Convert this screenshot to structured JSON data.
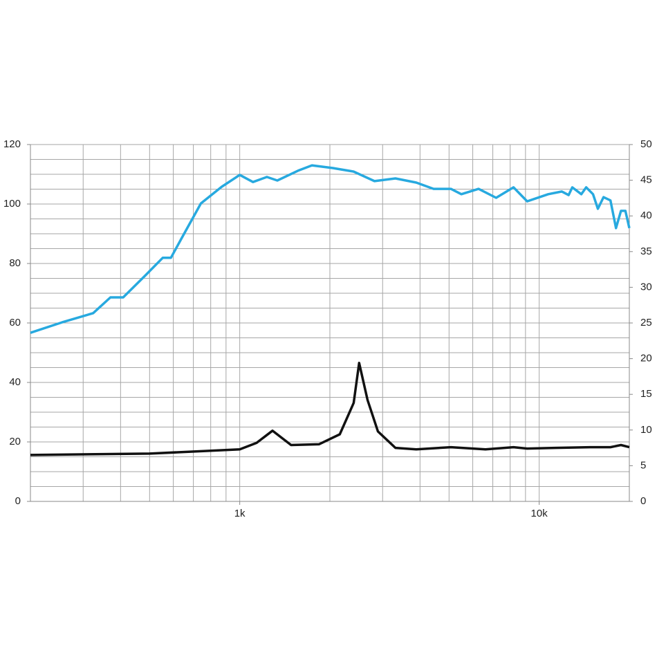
{
  "chart_data": {
    "type": "line",
    "xscale": "log",
    "xlim": [
      200,
      20000
    ],
    "xticks": [
      {
        "value": 1000,
        "label": "1k"
      },
      {
        "value": 10000,
        "label": "10k"
      }
    ],
    "xminorticks": [
      200,
      300,
      400,
      500,
      600,
      700,
      800,
      900,
      2000,
      3000,
      4000,
      5000,
      6000,
      7000,
      8000,
      9000,
      20000
    ],
    "ylim": [
      0,
      120
    ],
    "yticks": [
      0,
      20,
      40,
      60,
      80,
      100,
      120
    ],
    "yminorticks": [
      5,
      10,
      15,
      25,
      30,
      35,
      45,
      50,
      55,
      65,
      70,
      75,
      85,
      90,
      95,
      105,
      110,
      115
    ],
    "y2lim": [
      0,
      50
    ],
    "y2ticks": [
      0,
      5,
      10,
      15,
      20,
      25,
      30,
      35,
      40,
      45,
      50
    ],
    "grid": true,
    "series": [
      {
        "color": "#27a9df",
        "axis": "y",
        "x": [
          200,
          255,
          324,
          370,
          408,
          484,
          553,
          589,
          639,
          742,
          870,
          1000,
          1107,
          1232,
          1335,
          1566,
          1743,
          2046,
          2401,
          2819,
          3311,
          3886,
          4441,
          5072,
          5497,
          6275,
          7180,
          8208,
          9117,
          10720,
          11900,
          12540,
          12900,
          13830,
          14350,
          15130,
          15700,
          16400,
          17300,
          18050,
          18750,
          19400,
          20000
        ],
        "values": [
          56.7,
          60.2,
          63.3,
          68.6,
          68.6,
          76.0,
          81.9,
          81.9,
          88.4,
          100.2,
          105.8,
          109.8,
          107.4,
          109.1,
          107.9,
          111.2,
          113.0,
          112.1,
          110.9,
          107.7,
          108.6,
          107.2,
          105.1,
          105.1,
          103.3,
          105.1,
          102.1,
          105.6,
          100.9,
          103.3,
          104.2,
          103.0,
          105.6,
          103.3,
          105.6,
          103.3,
          98.4,
          102.3,
          101.2,
          91.9,
          97.7,
          97.7,
          91.9
        ]
      },
      {
        "color": "#111111",
        "axis": "y2",
        "x": [
          200,
          500,
          800,
          1000,
          1138,
          1286,
          1484,
          1839,
          2158,
          2401,
          2505,
          2672,
          2895,
          3311,
          3886,
          5072,
          6617,
          8208,
          9117,
          11300,
          14800,
          17300,
          18750,
          20000
        ],
        "values": [
          6.5,
          6.7,
          7.1,
          7.3,
          8.2,
          9.9,
          7.9,
          8.0,
          9.4,
          13.8,
          19.4,
          14.2,
          9.8,
          7.5,
          7.3,
          7.6,
          7.3,
          7.6,
          7.4,
          7.5,
          7.6,
          7.6,
          7.9,
          7.6
        ]
      }
    ]
  }
}
